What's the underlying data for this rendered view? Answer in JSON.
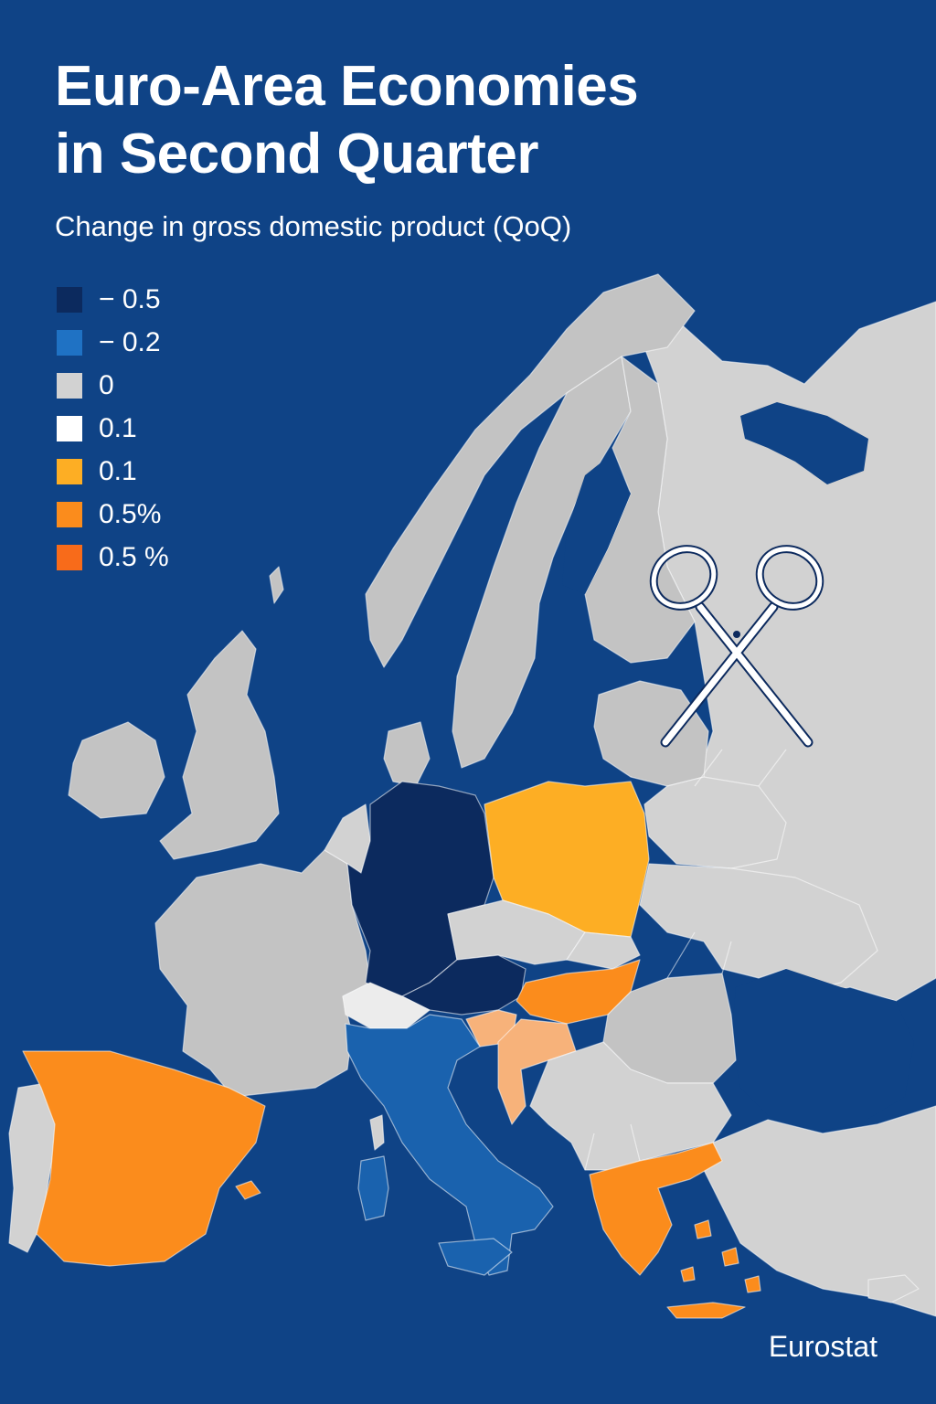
{
  "title_lines": [
    "Euro-Area Economies",
    "in Second Quarter"
  ],
  "subtitle": "Change in gross domestic product (QoQ)",
  "legend": [
    {
      "label": "− 0.5",
      "color": "#0c2a5e"
    },
    {
      "label": "− 0.2",
      "color": "#1f72c4"
    },
    {
      "label": "0",
      "color": "#d2d2d2"
    },
    {
      "label": "0.1",
      "color": "#ffffff"
    },
    {
      "label": "0.1",
      "color": "#fdae24"
    },
    {
      "label": "0.5%",
      "color": "#fb8c1c"
    },
    {
      "label": "0.5 %",
      "color": "#f86b1a"
    }
  ],
  "colors": {
    "sea": "#0f4386",
    "land_neutral": "#d2d2d2",
    "land_dark": "#c3c3c3",
    "germany_austria": "#0c2a5e",
    "italy": "#1a62ae",
    "poland": "#fdae24",
    "spain_greece_hungary": "#fb8c1c",
    "croatia_slovenia": "#f7b27a",
    "switzerland": "#ececec"
  },
  "countries": {
    "germany": "-0.5",
    "austria": "-0.5",
    "italy": "-0.2",
    "poland": "0.1",
    "spain": "0.5%",
    "greece": "0.5%",
    "hungary": "0.5%"
  },
  "overlay_icon": "scissors-icon",
  "source": "Eurostat"
}
